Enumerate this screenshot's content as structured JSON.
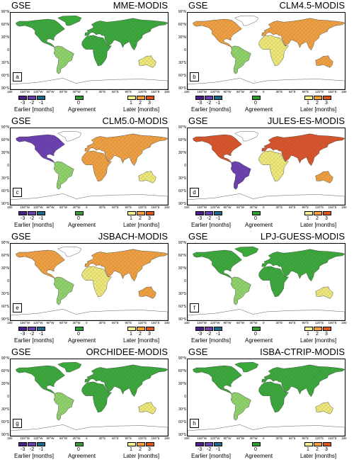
{
  "panels": [
    {
      "prefix": "GSE",
      "title": "MME-MODIS",
      "letter": "a",
      "style": "green"
    },
    {
      "prefix": "GSE",
      "title": "CLM4.5-MODIS",
      "letter": "b",
      "style": "mixed"
    },
    {
      "prefix": "GSE",
      "title": "CLM5.0-MODIS",
      "letter": "c",
      "style": "sparse"
    },
    {
      "prefix": "GSE",
      "title": "JULES-ES-MODIS",
      "letter": "d",
      "style": "late"
    },
    {
      "prefix": "GSE",
      "title": "JSBACH-MODIS",
      "letter": "e",
      "style": "mixed"
    },
    {
      "prefix": "GSE",
      "title": "LPJ-GUESS-MODIS",
      "letter": "f",
      "style": "green"
    },
    {
      "prefix": "GSE",
      "title": "ORCHIDEE-MODIS",
      "letter": "g",
      "style": "green"
    },
    {
      "prefix": "GSE",
      "title": "ISBA-CTRIP-MODIS",
      "letter": "h",
      "style": "green"
    }
  ],
  "lat_ticks": [
    "90°N",
    "60°N",
    "30°N",
    "0",
    "30°S",
    "60°S",
    "90°S"
  ],
  "lon_ticks": [
    "180",
    "150°W",
    "120°W",
    "90°W",
    "60°W",
    "30°W",
    "0",
    "30°E",
    "60°E",
    "90°E",
    "120°E",
    "150°E",
    "180"
  ],
  "legend": {
    "earlier": {
      "label": "Earlier [months]",
      "values": [
        "-3",
        "-2",
        "-1"
      ],
      "colors": [
        "#4b1f8c",
        "#6a3fb0",
        "#1f6a8a"
      ]
    },
    "agreement": {
      "label": "Agreement",
      "values": [
        "0"
      ],
      "colors": [
        "#2fa02f"
      ]
    },
    "later": {
      "label": "Later [months]",
      "values": [
        "1",
        "2",
        "3"
      ],
      "colors": [
        "#f6f08a",
        "#f5a13a",
        "#e0561b"
      ]
    }
  },
  "colors": {
    "green": "#3aa83a",
    "lightgreen": "#8fd36a",
    "yellow": "#efe97a",
    "orange": "#f0a040",
    "red": "#d9542a",
    "purple": "#6a3fb0",
    "teal": "#1f6a8a",
    "coast": "#333333"
  }
}
